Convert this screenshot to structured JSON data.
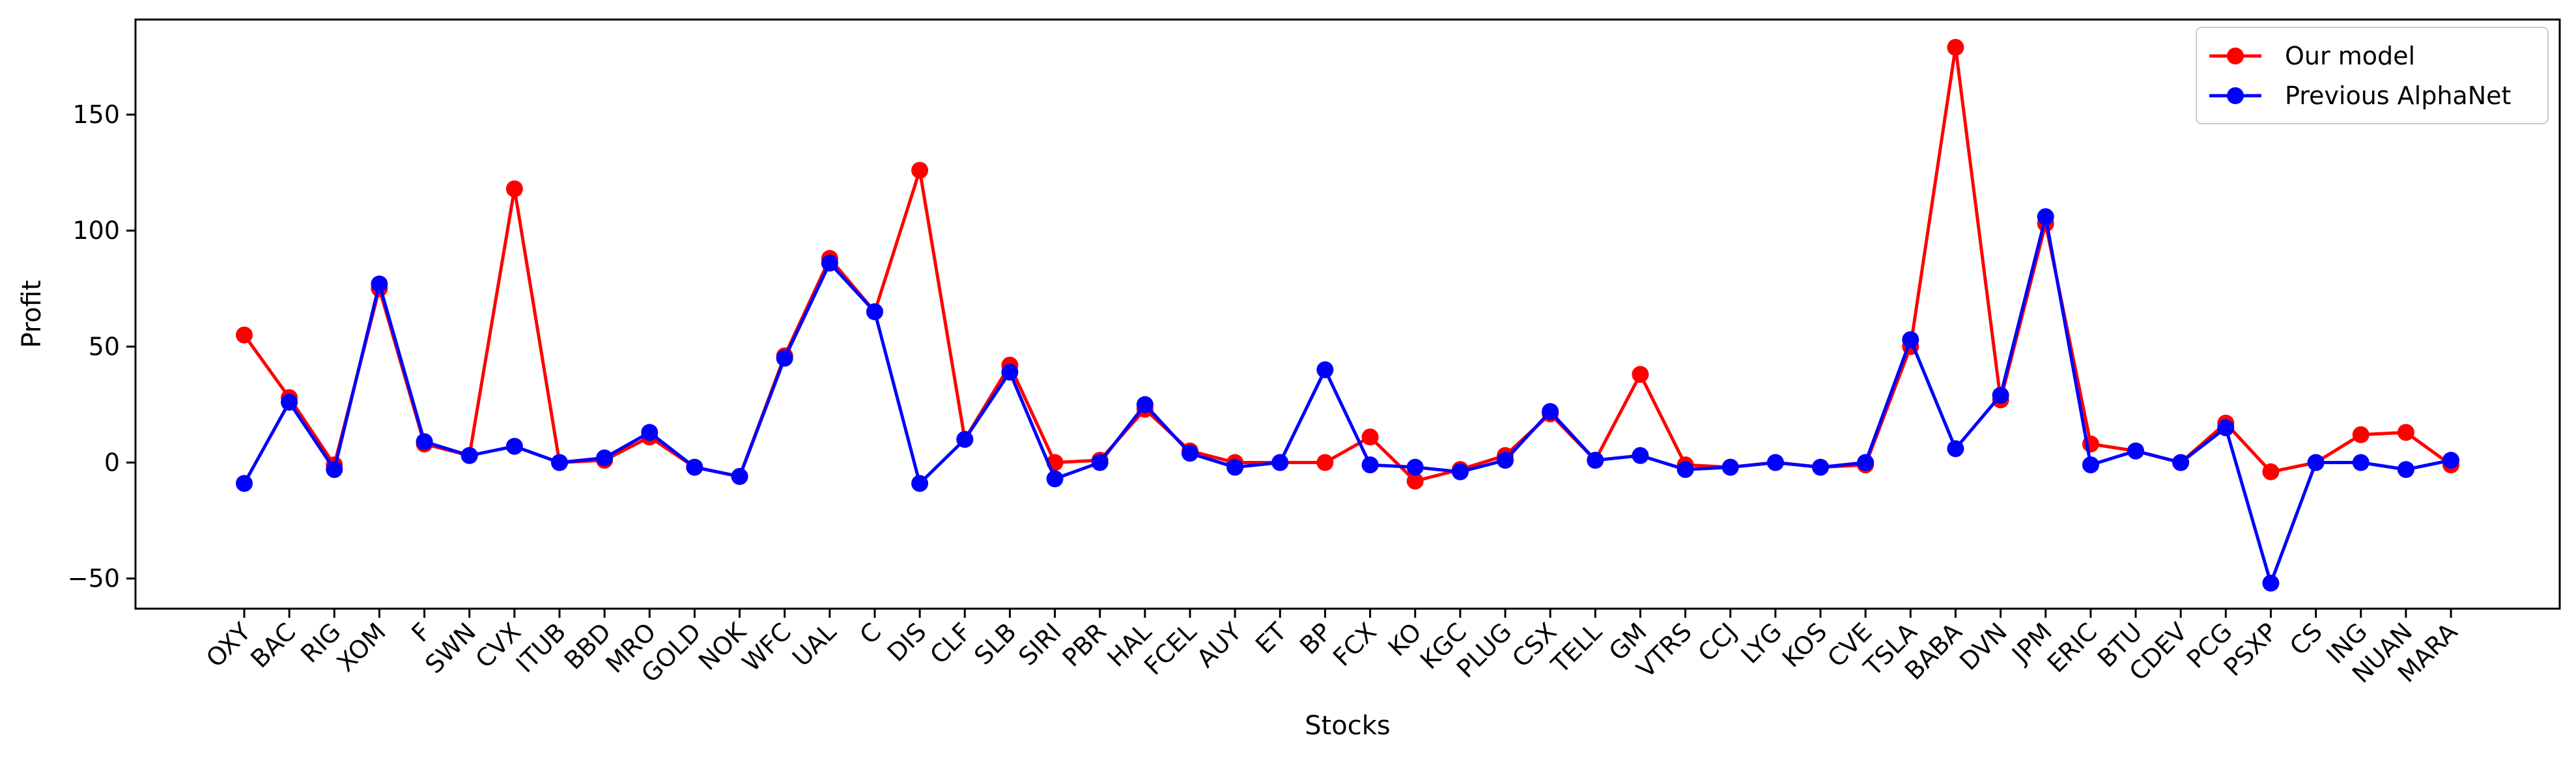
{
  "chart_data": {
    "type": "line",
    "title": "",
    "xlabel": "Stocks",
    "ylabel": "Profit",
    "ylim": [
      -63,
      191
    ],
    "yticks": [
      -50,
      0,
      50,
      100,
      150
    ],
    "ytick_labels": [
      "−50",
      "0",
      "50",
      "100",
      "150"
    ],
    "grid": false,
    "legend_position": "top-right",
    "categories": [
      "OXY",
      "BAC",
      "RIG",
      "XOM",
      "F",
      "SWN",
      "CVX",
      "ITUB",
      "BBD",
      "MRO",
      "GOLD",
      "NOK",
      "WFC",
      "UAL",
      "C",
      "DIS",
      "CLF",
      "SLB",
      "SIRI",
      "PBR",
      "HAL",
      "FCEL",
      "AUY",
      "ET",
      "BP",
      "FCX",
      "KO",
      "KGC",
      "PLUG",
      "CSX",
      "TELL",
      "GM",
      "VTRS",
      "CCJ",
      "LYG",
      "KOS",
      "CVE",
      "TSLA",
      "BABA",
      "DVN",
      "JPM",
      "ERIC",
      "BTU",
      "CDEV",
      "PCG",
      "PSXP",
      "CS",
      "ING",
      "NUAN",
      "MARA"
    ],
    "series": [
      {
        "name": "Our model",
        "color": "#ff0000",
        "values": [
          55,
          28,
          -1,
          75,
          8,
          3,
          118,
          0,
          1,
          11,
          -2,
          -6,
          46,
          88,
          65,
          126,
          10,
          42,
          0,
          1,
          23,
          5,
          0,
          0,
          0,
          11,
          -8,
          -3,
          3,
          21,
          1,
          38,
          -1,
          -2,
          0,
          -2,
          -1,
          50,
          179,
          27,
          103,
          8,
          5,
          0,
          17,
          -4,
          0,
          12,
          13,
          -1
        ]
      },
      {
        "name": "Previous AlphaNet",
        "color": "#0000ff",
        "values": [
          -9,
          26,
          -3,
          77,
          9,
          3,
          7,
          0,
          2,
          13,
          -2,
          -6,
          45,
          86,
          65,
          -9,
          10,
          39,
          -7,
          0,
          25,
          4,
          -2,
          0,
          40,
          -1,
          -2,
          -4,
          1,
          22,
          1,
          3,
          -3,
          -2,
          0,
          -2,
          0,
          53,
          6,
          29,
          106,
          -1,
          5,
          0,
          15,
          -52,
          0,
          0,
          -3,
          1
        ]
      }
    ]
  }
}
